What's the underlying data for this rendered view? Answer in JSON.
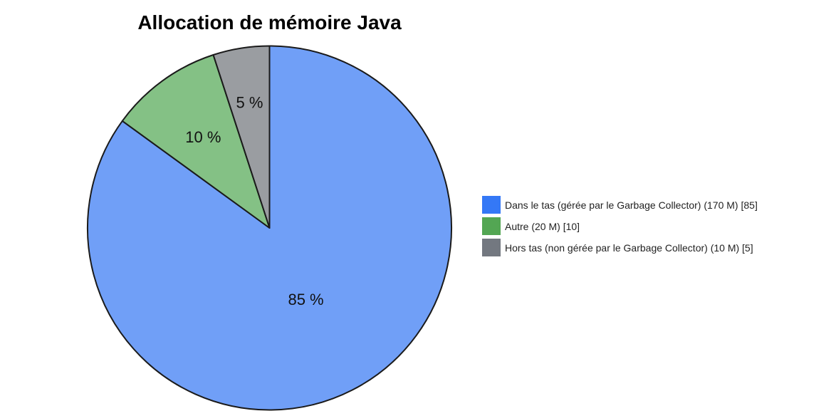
{
  "chart_data": {
    "type": "pie",
    "title": "Allocation de mémoire Java",
    "categories": [
      "Dans le tas (gérée par le Garbage Collector)",
      "Autre",
      "Hors tas (non gérée par le Garbage Collector)"
    ],
    "values": [
      170,
      20,
      10
    ],
    "percentages": [
      85,
      10,
      5
    ],
    "units": "M",
    "slice_labels": [
      "85 %",
      "10 %",
      "5 %"
    ],
    "legend_entries": [
      "Dans le tas (gérée par le Garbage Collector) (170 M) [85]",
      "Autre (20 M) [10]",
      "Hors tas (non gérée par le Garbage Collector) (10 M) [5]"
    ],
    "slice_colors": [
      "#709ff7",
      "#84c185",
      "#9a9da1"
    ],
    "legend_colors": [
      "#3478f6",
      "#53a653",
      "#737880"
    ],
    "start_angle": "12 o'clock",
    "direction": "clockwise",
    "legend_position": "right"
  },
  "title": "Allocation de mémoire Java",
  "slices": [
    {
      "label": "85 %",
      "color": "#709ff7"
    },
    {
      "label": "10 %",
      "color": "#84c185"
    },
    {
      "label": "5 %",
      "color": "#9a9da1"
    }
  ],
  "legend": [
    {
      "text": "Dans le tas (gérée par le Garbage Collector) (170 M) [85]",
      "color": "#3478f6"
    },
    {
      "text": "Autre (20 M) [10]",
      "color": "#53a653"
    },
    {
      "text": "Hors tas (non gérée par le Garbage Collector) (10 M) [5]",
      "color": "#737880"
    }
  ]
}
